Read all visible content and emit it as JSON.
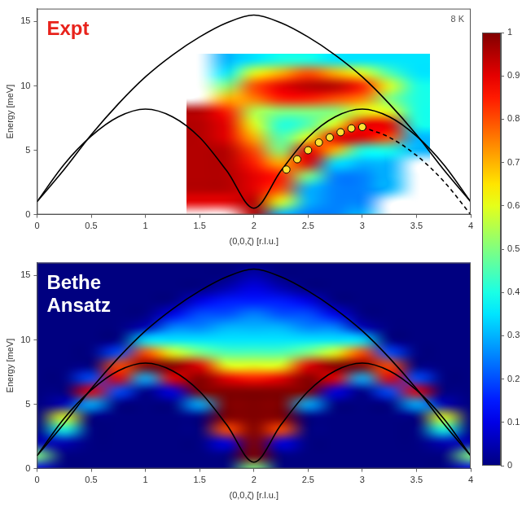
{
  "colorbar": {
    "range": [
      0,
      1
    ],
    "ticks": [
      0,
      0.1,
      0.2,
      0.3,
      0.4,
      0.5,
      0.6,
      0.7,
      0.8,
      0.9,
      1
    ]
  },
  "chart_data": [
    {
      "type": "heatmap",
      "x_label": "(0,0,ζ) [r.l.u.]",
      "y_label": "Energy [meV]",
      "xlim": [
        0,
        4
      ],
      "xticks": [
        0,
        0.5,
        1,
        1.5,
        2,
        2.5,
        3,
        3.5,
        4
      ],
      "ylim": [
        0,
        16
      ],
      "yticks": [
        0,
        5,
        10,
        15
      ],
      "grid": false,
      "annotations": [
        {
          "text": "Expt",
          "color": "#e8231c"
        },
        {
          "text": "8 K",
          "color": "#555555"
        }
      ],
      "heatmap": {
        "x": [
          1.5,
          1.75,
          2,
          2.25,
          2.5,
          2.75,
          3,
          3.25,
          3.5
        ],
        "y": [
          0,
          1,
          2,
          3,
          4,
          5,
          6,
          7,
          8,
          9,
          10,
          11,
          12
        ],
        "z": [
          [
            null,
            null,
            0.95,
            0.3,
            0.25,
            0.25,
            0.3,
            null,
            null
          ],
          [
            0.9,
            0.9,
            0.95,
            0.6,
            0.3,
            0.25,
            0.25,
            null,
            null
          ],
          [
            0.95,
            0.95,
            0.9,
            0.8,
            0.3,
            0.25,
            0.25,
            0.3,
            null
          ],
          [
            0.95,
            0.95,
            0.9,
            0.85,
            0.5,
            0.25,
            0.25,
            0.3,
            null
          ],
          [
            0.95,
            0.95,
            0.85,
            0.7,
            0.9,
            0.35,
            0.3,
            0.3,
            null
          ],
          [
            0.95,
            0.95,
            0.8,
            0.5,
            0.9,
            0.7,
            0.4,
            0.4,
            0.3
          ],
          [
            0.95,
            0.9,
            0.7,
            0.45,
            0.6,
            0.9,
            0.9,
            0.8,
            0.3
          ],
          [
            0.95,
            0.9,
            0.6,
            0.4,
            0.45,
            0.6,
            0.9,
            0.9,
            0.4
          ],
          [
            0.95,
            0.85,
            0.55,
            0.5,
            0.5,
            0.5,
            0.6,
            0.6,
            0.4
          ],
          [
            null,
            0.7,
            0.75,
            0.85,
            0.85,
            0.8,
            0.75,
            0.5,
            0.4
          ],
          [
            null,
            0.5,
            0.8,
            0.9,
            0.95,
            0.95,
            0.85,
            0.6,
            0.4
          ],
          [
            null,
            0.35,
            0.6,
            0.7,
            0.8,
            0.7,
            0.6,
            0.45,
            0.35
          ],
          [
            null,
            0.3,
            0.35,
            0.4,
            0.4,
            0.35,
            0.35,
            0.35,
            0.35
          ]
        ]
      },
      "series": [
        {
          "type": "line",
          "color": "#000000",
          "line_style": "solid",
          "x": [
            0,
            0.25,
            0.5,
            0.75,
            1,
            1.25,
            1.5,
            1.75,
            2,
            2.25,
            2.5,
            2.75,
            3,
            3.25,
            3.5,
            3.75,
            4
          ],
          "values": [
            1,
            3.5,
            6.2,
            8.6,
            10.7,
            12.4,
            13.8,
            14.9,
            15.5,
            14.9,
            13.8,
            12.4,
            10.7,
            8.6,
            6.2,
            3.5,
            1
          ]
        },
        {
          "type": "line",
          "color": "#000000",
          "line_style": "solid",
          "x": [
            0,
            0.25,
            0.5,
            0.75,
            1,
            1.25,
            1.5,
            1.75,
            2,
            2.25,
            2.5,
            2.75,
            3,
            3.25,
            3.5,
            3.75,
            4
          ],
          "values": [
            1,
            3.9,
            6.1,
            7.6,
            8.2,
            7.6,
            6.0,
            3.4,
            0.5,
            3.4,
            6.0,
            7.6,
            8.2,
            7.6,
            6.1,
            3.9,
            1
          ]
        },
        {
          "type": "line",
          "color": "#000000",
          "line_style": "dashed",
          "x": [
            3,
            3.25,
            3.5,
            3.75,
            4
          ],
          "values": [
            6.8,
            6.0,
            4.6,
            2.6,
            0
          ]
        },
        {
          "type": "scatter",
          "color": "#ffe033",
          "marker": "circle",
          "x": [
            2.3,
            2.4,
            2.5,
            2.6,
            2.7,
            2.8,
            2.9,
            3.0
          ],
          "values": [
            3.5,
            4.3,
            5.0,
            5.6,
            6.0,
            6.4,
            6.7,
            6.8
          ]
        }
      ]
    },
    {
      "type": "heatmap",
      "x_label": "(0,0,ζ) [r.l.u.]",
      "y_label": "Energy [meV]",
      "xlim": [
        0,
        4
      ],
      "xticks": [
        0,
        0.5,
        1,
        1.5,
        2,
        2.5,
        3,
        3.5,
        4
      ],
      "ylim": [
        0,
        16
      ],
      "yticks": [
        0,
        5,
        10,
        15
      ],
      "grid": false,
      "annotations": [
        {
          "text": "Bethe Ansatz",
          "color": "#ffffff"
        }
      ],
      "heatmap": {
        "x": [
          0,
          0.25,
          0.5,
          0.75,
          1,
          1.25,
          1.5,
          1.75,
          2,
          2.25,
          2.5,
          2.75,
          3,
          3.25,
          3.5,
          3.75,
          4
        ],
        "y": [
          0,
          1,
          2,
          3,
          4,
          5,
          6,
          7,
          8,
          9,
          10,
          11,
          12,
          13,
          14,
          15,
          16
        ],
        "z": [
          [
            0.1,
            0,
            0,
            0,
            0,
            0,
            0,
            0,
            0.5,
            0,
            0,
            0,
            0,
            0,
            0,
            0,
            0.1
          ],
          [
            0.5,
            0,
            0,
            0,
            0,
            0,
            0,
            0,
            1,
            0,
            0,
            0,
            0,
            0,
            0,
            0,
            0.5
          ],
          [
            0.05,
            0.05,
            0,
            0,
            0,
            0,
            0,
            0.1,
            1,
            0.1,
            0,
            0,
            0,
            0,
            0,
            0.05,
            0.05
          ],
          [
            0,
            0.4,
            0,
            0,
            0,
            0,
            0,
            0.8,
            1,
            0.8,
            0,
            0,
            0,
            0,
            0,
            0.4,
            0
          ],
          [
            0,
            0.6,
            0,
            0,
            0,
            0,
            0,
            1,
            1,
            1,
            0,
            0,
            0,
            0,
            0,
            0.6,
            0
          ],
          [
            0,
            0.05,
            0.3,
            0,
            0,
            0,
            0.3,
            1,
            1,
            1,
            0.3,
            0,
            0,
            0,
            0.3,
            0.05,
            0
          ],
          [
            0,
            0,
            0.9,
            0.2,
            0,
            0.1,
            1,
            1,
            1,
            1,
            1,
            0.1,
            0,
            0.2,
            0.9,
            0,
            0
          ],
          [
            0,
            0,
            0.2,
            0.9,
            0.3,
            0.9,
            1,
            0.9,
            0.85,
            0.9,
            1,
            0.9,
            0.3,
            0.9,
            0.2,
            0,
            0
          ],
          [
            0,
            0,
            0,
            0.8,
            1,
            1,
            0.9,
            0.6,
            0.6,
            0.6,
            0.9,
            1,
            1,
            0.8,
            0,
            0,
            0
          ],
          [
            0,
            0,
            0,
            0.2,
            0.8,
            0.6,
            0.5,
            0.45,
            0.45,
            0.45,
            0.5,
            0.6,
            0.8,
            0.2,
            0,
            0,
            0
          ],
          [
            0,
            0,
            0,
            0,
            0.35,
            0.35,
            0.35,
            0.35,
            0.35,
            0.35,
            0.35,
            0.35,
            0.35,
            0,
            0,
            0,
            0
          ],
          [
            0,
            0,
            0,
            0,
            0.05,
            0.25,
            0.25,
            0.3,
            0.3,
            0.3,
            0.25,
            0.25,
            0.05,
            0,
            0,
            0,
            0
          ],
          [
            0,
            0,
            0,
            0,
            0,
            0.1,
            0.2,
            0.2,
            0.25,
            0.2,
            0.2,
            0.1,
            0,
            0,
            0,
            0,
            0
          ],
          [
            0,
            0,
            0,
            0,
            0,
            0,
            0.1,
            0.15,
            0.15,
            0.15,
            0.1,
            0,
            0,
            0,
            0,
            0,
            0
          ],
          [
            0,
            0,
            0,
            0,
            0,
            0,
            0,
            0.05,
            0.1,
            0.05,
            0,
            0,
            0,
            0,
            0,
            0,
            0
          ],
          [
            0,
            0,
            0,
            0,
            0,
            0,
            0,
            0,
            0.05,
            0,
            0,
            0,
            0,
            0,
            0,
            0,
            0
          ],
          [
            0,
            0,
            0,
            0,
            0,
            0,
            0,
            0,
            0,
            0,
            0,
            0,
            0,
            0,
            0,
            0,
            0
          ]
        ]
      },
      "series": [
        {
          "type": "line",
          "color": "#000000",
          "line_style": "solid",
          "x": [
            0,
            0.25,
            0.5,
            0.75,
            1,
            1.25,
            1.5,
            1.75,
            2,
            2.25,
            2.5,
            2.75,
            3,
            3.25,
            3.5,
            3.75,
            4
          ],
          "values": [
            1,
            3.5,
            6.2,
            8.6,
            10.7,
            12.4,
            13.8,
            14.9,
            15.5,
            14.9,
            13.8,
            12.4,
            10.7,
            8.6,
            6.2,
            3.5,
            1
          ]
        },
        {
          "type": "line",
          "color": "#000000",
          "line_style": "solid",
          "x": [
            0,
            0.25,
            0.5,
            0.75,
            1,
            1.25,
            1.5,
            1.75,
            2,
            2.25,
            2.5,
            2.75,
            3,
            3.25,
            3.5,
            3.75,
            4
          ],
          "values": [
            1,
            3.9,
            6.1,
            7.6,
            8.2,
            7.6,
            6.0,
            3.4,
            0.5,
            3.4,
            6.0,
            7.6,
            8.2,
            7.6,
            6.1,
            3.9,
            1
          ]
        }
      ]
    }
  ]
}
